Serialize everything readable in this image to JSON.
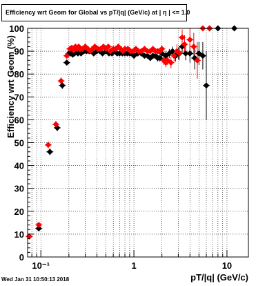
{
  "chart_data": {
    "type": "scatter",
    "title": "Efficiency wrt Geom for Global vs pT/|q| (GeV/c) at | η | <= 1.0",
    "xlabel": "pT/|q| (GeV/c)",
    "ylabel": "Efficiency wrt Geom (%)",
    "x_scale": "log",
    "xlim": [
      0.072,
      17
    ],
    "ylim": [
      0,
      100
    ],
    "grid": true,
    "x_ticks": [
      {
        "value": 0.1,
        "label": "10⁻¹"
      },
      {
        "value": 1,
        "label": "1"
      },
      {
        "value": 10,
        "label": "10"
      }
    ],
    "y_ticks": [
      0,
      10,
      20,
      30,
      40,
      50,
      60,
      70,
      80,
      90,
      100
    ],
    "series": [
      {
        "color": "#000000",
        "marker": "diamond",
        "x": [
          0.075,
          0.095,
          0.125,
          0.15,
          0.17,
          0.19,
          0.2,
          0.21,
          0.22,
          0.23,
          0.24,
          0.25,
          0.27,
          0.29,
          0.31,
          0.33,
          0.35,
          0.37,
          0.4,
          0.43,
          0.46,
          0.5,
          0.54,
          0.58,
          0.62,
          0.66,
          0.7,
          0.75,
          0.8,
          0.85,
          0.9,
          0.95,
          1.0,
          1.1,
          1.2,
          1.3,
          1.4,
          1.5,
          1.6,
          1.7,
          1.8,
          1.9,
          2.0,
          2.2,
          2.4,
          2.6,
          2.8,
          3.0,
          3.3,
          3.6,
          4.0,
          4.5,
          5.0,
          5.5,
          6.0,
          6.5,
          8.0,
          12.0
        ],
        "y": [
          9,
          12.5,
          46,
          56.5,
          75,
          85,
          89,
          89,
          88.5,
          89,
          90,
          89,
          89,
          90,
          90,
          90,
          90,
          89,
          90,
          90,
          89,
          90,
          89,
          89,
          90,
          89,
          89,
          89,
          89,
          89,
          89,
          89,
          88,
          89,
          89,
          88,
          88,
          87,
          88,
          88,
          87,
          87,
          89,
          88,
          89,
          90,
          88,
          89,
          92,
          89,
          89,
          87,
          89,
          88,
          75,
          100,
          100,
          100
        ],
        "yerr": [
          0.5,
          0.5,
          1.5,
          1.5,
          1.5,
          1.2,
          0.8,
          0.8,
          0.8,
          0.8,
          0.8,
          0.8,
          0.8,
          0.8,
          0.8,
          0.8,
          0.8,
          0.8,
          0.8,
          0.8,
          0.8,
          0.8,
          0.8,
          0.8,
          0.8,
          0.8,
          0.8,
          0.8,
          0.8,
          0.8,
          0.8,
          0.8,
          1,
          1,
          1,
          1,
          1,
          1.2,
          1.2,
          1.2,
          1.5,
          1.5,
          1.5,
          2,
          2,
          2,
          2.5,
          2.5,
          3,
          3,
          4,
          5,
          5,
          6,
          15,
          0,
          0,
          0
        ]
      },
      {
        "color": "#ff0000",
        "marker": "diamond",
        "x": [
          0.075,
          0.095,
          0.12,
          0.145,
          0.165,
          0.19,
          0.205,
          0.215,
          0.225,
          0.235,
          0.245,
          0.255,
          0.265,
          0.28,
          0.3,
          0.32,
          0.34,
          0.36,
          0.38,
          0.41,
          0.44,
          0.47,
          0.5,
          0.53,
          0.56,
          0.6,
          0.64,
          0.68,
          0.72,
          0.76,
          0.8,
          0.86,
          0.92,
          0.98,
          1.05,
          1.12,
          1.2,
          1.3,
          1.4,
          1.5,
          1.6,
          1.7,
          1.8,
          1.9,
          2.0,
          2.1,
          2.2,
          2.3,
          2.5,
          2.7,
          2.9,
          3.1,
          3.3,
          3.5,
          4.0,
          4.4,
          4.8,
          5.5,
          6.5
        ],
        "y": [
          9,
          14,
          49,
          58,
          77,
          88,
          91,
          91.5,
          90.5,
          92,
          91,
          92,
          91,
          91,
          92,
          91,
          90,
          91,
          92,
          91,
          91,
          92,
          91,
          92,
          90,
          91,
          91,
          92,
          91,
          90,
          91,
          91,
          90,
          90,
          91,
          90,
          90,
          91,
          90,
          90,
          91,
          90,
          90,
          90,
          91,
          86,
          85,
          86,
          85,
          88,
          90,
          89,
          96,
          93,
          95,
          92,
          86,
          100,
          100
        ],
        "yerr": [
          0.5,
          0.5,
          1.5,
          1.5,
          1.5,
          1.2,
          0.8,
          0.8,
          0.8,
          0.8,
          0.8,
          0.8,
          0.8,
          0.8,
          0.8,
          0.8,
          0.8,
          0.8,
          0.8,
          0.8,
          0.8,
          0.8,
          0.8,
          0.8,
          0.8,
          0.8,
          0.8,
          0.8,
          0.8,
          0.8,
          0.8,
          0.8,
          0.8,
          0.8,
          1,
          1,
          1,
          1,
          1,
          1,
          1.2,
          1.2,
          1.2,
          1.2,
          1.5,
          2,
          2,
          2,
          2.5,
          2.5,
          3,
          3,
          3.5,
          4,
          5,
          6,
          8,
          0,
          0
        ]
      }
    ]
  },
  "footer": {
    "timestamp": "Wed Jan 31 10:50:13 2018"
  }
}
